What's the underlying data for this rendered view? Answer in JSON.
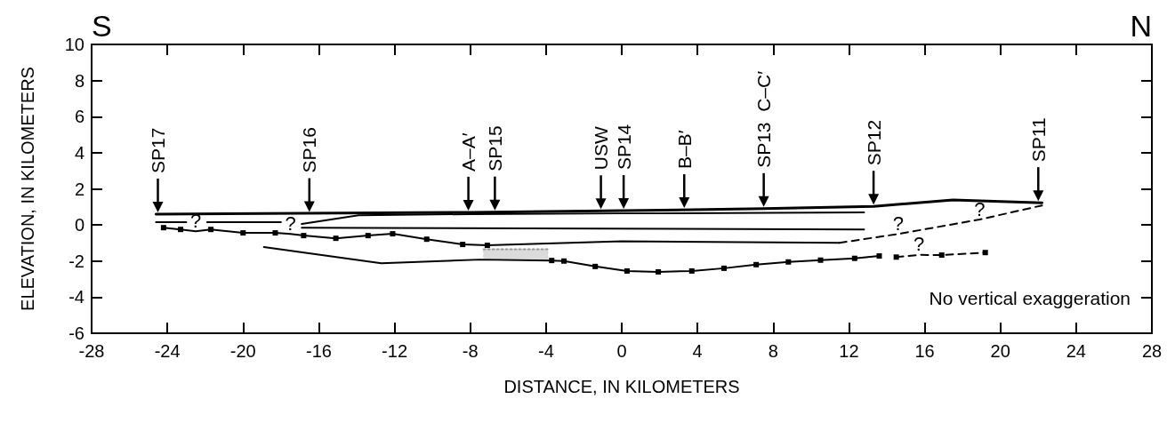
{
  "chart_data": {
    "type": "line",
    "xlabel": "DISTANCE, IN KILOMETERS",
    "ylabel": "ELEVATION, IN KILOMETERS",
    "xlim": [
      -28,
      28
    ],
    "xticks": [
      -28,
      -24,
      -20,
      -16,
      -12,
      -8,
      -4,
      0,
      4,
      8,
      12,
      16,
      20,
      24,
      28
    ],
    "ylim": [
      -6,
      10
    ],
    "yticks": [
      -6,
      -4,
      -2,
      0,
      2,
      4,
      6,
      8,
      10
    ],
    "grid": false,
    "marker": "none",
    "line_style": "solid",
    "annotations": [
      "S",
      "N",
      "No vertical exaggeration",
      {
        "text": "SP17",
        "x": -24.5,
        "y": 0.6
      },
      {
        "text": "SP16",
        "x": -16.5,
        "y": 0.62
      },
      {
        "text": "A–A′",
        "x": -8.1,
        "y": 0.7
      },
      {
        "text": "SP15",
        "x": -6.7,
        "y": 0.71
      },
      {
        "text": "USW",
        "x": -1.1,
        "y": 0.78
      },
      {
        "text": "SP14",
        "x": 0.1,
        "y": 0.79
      },
      {
        "text": "B–B′",
        "x": 3.3,
        "y": 0.84
      },
      {
        "text": "SP13  C–C′",
        "x": 7.5,
        "y": 0.9
      },
      {
        "text": "SP12",
        "x": 13.3,
        "y": 1.03
      },
      {
        "text": "SP11",
        "x": 22.0,
        "y": 1.23
      }
    ],
    "series": [
      {
        "color": "#000000",
        "x": [
          -24.6,
          -8.0,
          0.05,
          7.5,
          13.3,
          17.5,
          22.2
        ],
        "values": [
          0.6,
          0.7,
          0.79,
          0.9,
          1.03,
          1.38,
          1.23
        ]
      },
      {
        "color": "#000000",
        "x": [
          -16.9,
          -13.9,
          -8.0,
          0.0,
          12.8
        ],
        "values": [
          0.05,
          0.54,
          0.6,
          0.64,
          0.69
        ]
      },
      {
        "color": "#000000",
        "x": [
          -16.9,
          12.8
        ],
        "values": [
          -0.15,
          -0.25
        ]
      },
      {
        "color": "#000000",
        "x": [
          -24.6,
          -23.0,
          -22.5,
          -21.9,
          -18.0
        ],
        "values": [
          0.15,
          0.15,
          null,
          0.15,
          0.15
        ]
      },
      {
        "color": "#000000",
        "x": [
          -7.1,
          0.0,
          11.5
        ],
        "values": [
          -1.13,
          -0.9,
          -0.99
        ]
      },
      {
        "color": "#000000",
        "line_style": "dashed",
        "x": [
          11.5,
          14.6,
          18.9,
          22.2
        ],
        "values": [
          -0.99,
          -0.5,
          0.3,
          1.08
        ],
        "value_labels": [
          null,
          "?",
          "?",
          null
        ]
      },
      {
        "color": "#000000",
        "marker": "square",
        "x": [
          -24.2,
          -23.3,
          -22.5,
          -21.7,
          -20.0,
          -18.3,
          -17.5,
          -16.8,
          -15.1,
          -13.4,
          -12.1,
          -10.3,
          -8.4,
          -7.1
        ],
        "values": [
          -0.15,
          -0.25,
          -0.35,
          -0.25,
          -0.44,
          -0.44,
          -0.5,
          -0.59,
          -0.74,
          -0.59,
          -0.49,
          -0.79,
          -1.08,
          -1.13
        ],
        "value_labels": [
          null,
          null,
          "?",
          null,
          null,
          null,
          "?",
          null,
          null,
          null,
          null,
          null,
          null,
          null
        ]
      },
      {
        "color": "#000000",
        "x": [
          -18.9,
          -12.7,
          -7.5,
          -3.7
        ],
        "values": [
          -1.23,
          -2.12,
          -1.92,
          -1.97
        ]
      },
      {
        "color": "#000000",
        "marker": "square",
        "x": [
          -3.7,
          -3.05,
          -1.4,
          0.28,
          1.93,
          3.7,
          5.4,
          7.1,
          8.8,
          10.5,
          12.3,
          13.6
        ],
        "values": [
          -1.97,
          -2.0,
          -2.3,
          -2.55,
          -2.6,
          -2.55,
          -2.4,
          -2.2,
          -2.05,
          -1.95,
          -1.85,
          -1.72
        ]
      },
      {
        "color": "#000000",
        "marker": "square",
        "line_style": "dashed",
        "x": [
          14.5,
          15.7,
          16.9,
          19.2
        ],
        "values": [
          -1.78,
          -1.66,
          -1.67,
          -1.53
        ],
        "value_labels": [
          null,
          "?",
          null,
          null
        ]
      },
      {
        "color": "#999999",
        "line_style": "dotted",
        "x": [
          -7.3,
          -3.9
        ],
        "values": [
          -1.35,
          -1.35
        ],
        "lower": [
          -1.9,
          -1.97
        ],
        "upper": [
          -1.35,
          -1.35
        ]
      }
    ]
  }
}
